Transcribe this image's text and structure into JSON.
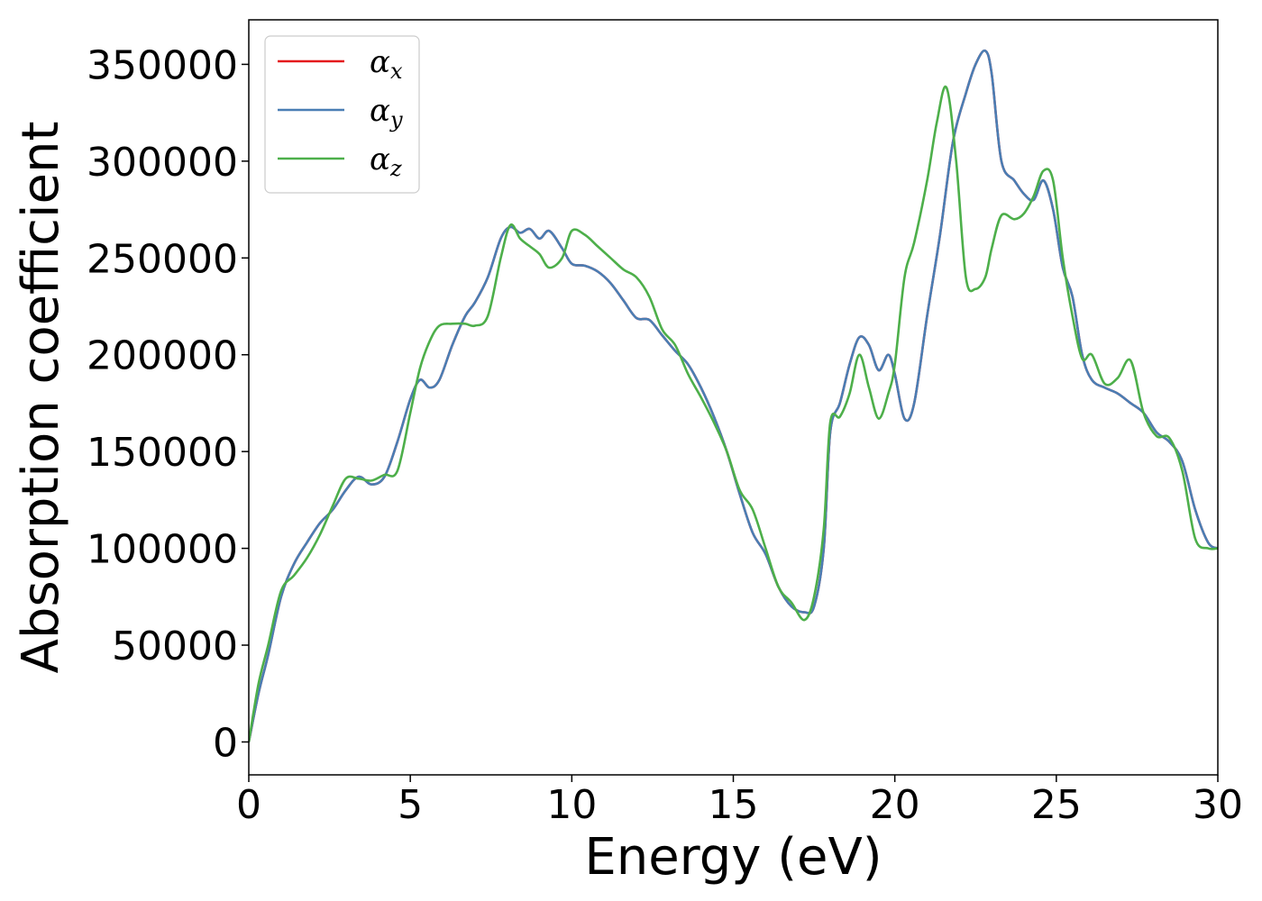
{
  "chart_data": {
    "type": "line",
    "xlabel": "Energy (eV)",
    "ylabel": "Absorption coefficient",
    "xlim": [
      0,
      30
    ],
    "ylim": [
      -17000,
      373000
    ],
    "xticks": [
      "0",
      "5",
      "10",
      "15",
      "20",
      "25",
      "30"
    ],
    "yticks": [
      "0",
      "50000",
      "100000",
      "150000",
      "200000",
      "250000",
      "300000",
      "350000"
    ],
    "grid": false,
    "legend_position": "top-left",
    "series": [
      {
        "name": "α_x",
        "base": "α",
        "sub": "x",
        "color": "#e41a1c",
        "x": [
          0,
          0.3,
          0.6,
          1.0,
          1.4,
          1.8,
          2.2,
          2.6,
          3.0,
          3.4,
          3.8,
          4.2,
          4.6,
          5.0,
          5.3,
          5.6,
          5.9,
          6.3,
          6.7,
          7.0,
          7.4,
          7.8,
          8.1,
          8.4,
          8.7,
          9.0,
          9.3,
          9.7,
          10.0,
          10.4,
          10.8,
          11.2,
          11.6,
          12.0,
          12.4,
          12.8,
          13.2,
          13.6,
          14.0,
          14.4,
          14.8,
          15.2,
          15.6,
          16.0,
          16.4,
          16.8,
          17.2,
          17.5,
          17.8,
          18.0,
          18.3,
          18.6,
          18.9,
          19.2,
          19.5,
          19.8,
          20.0,
          20.3,
          20.6,
          21.0,
          21.4,
          21.8,
          22.2,
          22.5,
          22.8,
          23.0,
          23.3,
          23.7,
          24.0,
          24.3,
          24.6,
          24.9,
          25.2,
          25.5,
          25.8,
          26.1,
          26.5,
          26.9,
          27.3,
          27.7,
          28.1,
          28.5,
          28.9,
          29.3,
          29.7,
          30.0
        ],
        "y": [
          0,
          25000,
          45000,
          75000,
          92000,
          103000,
          113000,
          120000,
          130000,
          137000,
          133000,
          137000,
          155000,
          177000,
          187000,
          183000,
          187000,
          205000,
          220000,
          227000,
          240000,
          260000,
          266000,
          263000,
          265000,
          260000,
          264000,
          255000,
          247000,
          246000,
          243000,
          237000,
          228000,
          219000,
          218000,
          210000,
          202000,
          195000,
          183000,
          168000,
          150000,
          128000,
          108000,
          97000,
          80000,
          70000,
          67000,
          70000,
          100000,
          160000,
          175000,
          195000,
          209000,
          205000,
          192000,
          200000,
          190000,
          167000,
          175000,
          220000,
          262000,
          310000,
          335000,
          350000,
          357000,
          345000,
          300000,
          290000,
          283000,
          280000,
          290000,
          275000,
          245000,
          230000,
          200000,
          187000,
          183000,
          180000,
          175000,
          170000,
          160000,
          155000,
          145000,
          120000,
          103000,
          100000
        ]
      },
      {
        "name": "α_y",
        "base": "α",
        "sub": "y",
        "color": "#4a7eb4",
        "x": [
          0,
          0.3,
          0.6,
          1.0,
          1.4,
          1.8,
          2.2,
          2.6,
          3.0,
          3.4,
          3.8,
          4.2,
          4.6,
          5.0,
          5.3,
          5.6,
          5.9,
          6.3,
          6.7,
          7.0,
          7.4,
          7.8,
          8.1,
          8.4,
          8.7,
          9.0,
          9.3,
          9.7,
          10.0,
          10.4,
          10.8,
          11.2,
          11.6,
          12.0,
          12.4,
          12.8,
          13.2,
          13.6,
          14.0,
          14.4,
          14.8,
          15.2,
          15.6,
          16.0,
          16.4,
          16.8,
          17.2,
          17.5,
          17.8,
          18.0,
          18.3,
          18.6,
          18.9,
          19.2,
          19.5,
          19.8,
          20.0,
          20.3,
          20.6,
          21.0,
          21.4,
          21.8,
          22.2,
          22.5,
          22.8,
          23.0,
          23.3,
          23.7,
          24.0,
          24.3,
          24.6,
          24.9,
          25.2,
          25.5,
          25.8,
          26.1,
          26.5,
          26.9,
          27.3,
          27.7,
          28.1,
          28.5,
          28.9,
          29.3,
          29.7,
          30.0
        ],
        "y": [
          0,
          25000,
          45000,
          75000,
          92000,
          103000,
          113000,
          120000,
          130000,
          137000,
          133000,
          137000,
          155000,
          177000,
          187000,
          183000,
          187000,
          205000,
          220000,
          227000,
          240000,
          260000,
          266000,
          263000,
          265000,
          260000,
          264000,
          255000,
          247000,
          246000,
          243000,
          237000,
          228000,
          219000,
          218000,
          210000,
          202000,
          195000,
          183000,
          168000,
          150000,
          128000,
          108000,
          97000,
          80000,
          70000,
          67000,
          70000,
          100000,
          160000,
          175000,
          195000,
          209000,
          205000,
          192000,
          200000,
          190000,
          167000,
          175000,
          220000,
          262000,
          310000,
          335000,
          350000,
          357000,
          345000,
          300000,
          290000,
          283000,
          280000,
          290000,
          275000,
          245000,
          230000,
          200000,
          187000,
          183000,
          180000,
          175000,
          170000,
          160000,
          155000,
          145000,
          120000,
          103000,
          100000
        ]
      },
      {
        "name": "α_z",
        "base": "α",
        "sub": "z",
        "color": "#4daf4a",
        "x": [
          0,
          0.3,
          0.6,
          1.0,
          1.4,
          1.8,
          2.2,
          2.6,
          3.0,
          3.4,
          3.8,
          4.2,
          4.6,
          5.0,
          5.3,
          5.6,
          5.9,
          6.3,
          6.7,
          7.0,
          7.4,
          7.8,
          8.1,
          8.4,
          8.7,
          9.0,
          9.3,
          9.7,
          10.0,
          10.4,
          10.8,
          11.2,
          11.6,
          12.0,
          12.4,
          12.8,
          13.2,
          13.6,
          14.0,
          14.4,
          14.8,
          15.2,
          15.6,
          16.0,
          16.4,
          16.8,
          17.2,
          17.5,
          17.8,
          18.0,
          18.3,
          18.6,
          18.9,
          19.2,
          19.5,
          19.8,
          20.0,
          20.3,
          20.6,
          21.0,
          21.3,
          21.6,
          21.9,
          22.2,
          22.5,
          22.8,
          23.0,
          23.3,
          23.7,
          24.0,
          24.3,
          24.6,
          24.9,
          25.2,
          25.5,
          25.8,
          26.1,
          26.5,
          26.9,
          27.3,
          27.7,
          28.1,
          28.5,
          28.9,
          29.3,
          29.7,
          30.0
        ],
        "y": [
          0,
          30000,
          50000,
          78000,
          86000,
          95000,
          107000,
          122000,
          136000,
          136000,
          135000,
          138000,
          140000,
          170000,
          193000,
          207000,
          215000,
          216000,
          216000,
          215000,
          220000,
          250000,
          267000,
          260000,
          256000,
          252000,
          245000,
          250000,
          264000,
          262000,
          256000,
          250000,
          244000,
          240000,
          230000,
          213000,
          205000,
          190000,
          178000,
          165000,
          150000,
          130000,
          120000,
          100000,
          80000,
          72000,
          63000,
          75000,
          110000,
          165000,
          168000,
          180000,
          200000,
          183000,
          167000,
          180000,
          195000,
          240000,
          258000,
          290000,
          320000,
          338000,
          300000,
          240000,
          234000,
          240000,
          255000,
          272000,
          270000,
          273000,
          282000,
          295000,
          290000,
          250000,
          220000,
          198000,
          200000,
          185000,
          188000,
          197000,
          170000,
          158000,
          157000,
          140000,
          105000,
          100000,
          100000
        ]
      }
    ]
  }
}
